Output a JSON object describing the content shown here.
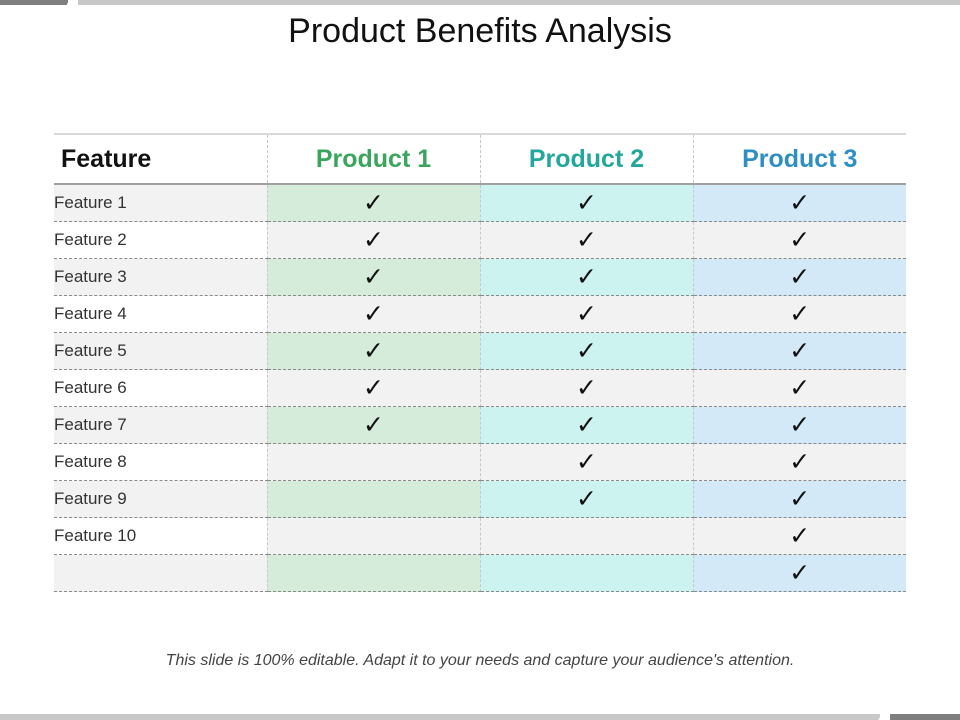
{
  "title": "Product Benefits Analysis",
  "header": {
    "feature": "Feature",
    "products": [
      "Product 1",
      "Product 2",
      "Product 3"
    ]
  },
  "colors": {
    "product1": "#3aa55d",
    "product2": "#23a79c",
    "product3": "#2e8fc4"
  },
  "check_symbol": "✓",
  "rows": [
    {
      "label": "Feature 1",
      "marks": [
        "✓",
        "✓",
        "✓"
      ]
    },
    {
      "label": "Feature 2",
      "marks": [
        "✓",
        "✓",
        "✓"
      ]
    },
    {
      "label": "Feature 3",
      "marks": [
        "✓",
        "✓",
        "✓"
      ]
    },
    {
      "label": "Feature 4",
      "marks": [
        "✓",
        "✓",
        "✓"
      ]
    },
    {
      "label": "Feature 5",
      "marks": [
        "✓",
        "✓",
        "✓"
      ]
    },
    {
      "label": "Feature 6",
      "marks": [
        "✓",
        "✓",
        "✓"
      ]
    },
    {
      "label": "Feature 7",
      "marks": [
        "✓",
        "✓",
        "✓"
      ]
    },
    {
      "label": "Feature 8",
      "marks": [
        "",
        "✓",
        "✓"
      ]
    },
    {
      "label": "Feature 9",
      "marks": [
        "",
        "✓",
        "✓"
      ]
    },
    {
      "label": "Feature 10",
      "marks": [
        "",
        "",
        "✓"
      ]
    },
    {
      "label": "",
      "marks": [
        "",
        "",
        "✓"
      ]
    }
  ],
  "footer": "This slide is 100% editable. Adapt it to your needs and capture your audience's attention."
}
